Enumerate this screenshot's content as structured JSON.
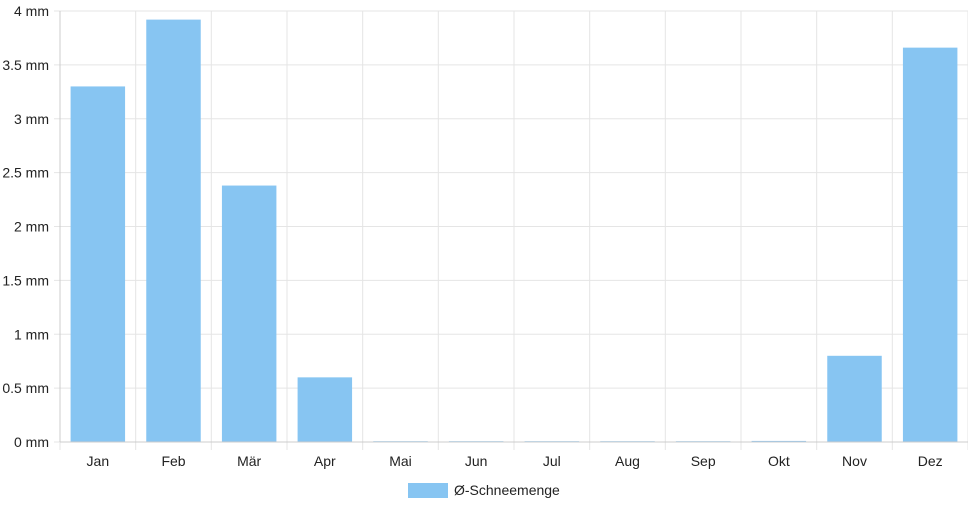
{
  "chart_data": {
    "type": "bar",
    "categories": [
      "Jan",
      "Feb",
      "Mär",
      "Apr",
      "Mai",
      "Jun",
      "Jul",
      "Aug",
      "Sep",
      "Okt",
      "Nov",
      "Dez"
    ],
    "series": [
      {
        "name": "Ø-Schneemenge",
        "values": [
          3.3,
          3.92,
          2.38,
          0.6,
          0,
          0,
          0,
          0,
          0,
          0.01,
          0.8,
          3.66
        ],
        "color": "#87c5f2"
      }
    ],
    "y_ticks": [
      "0 mm",
      "0.5 mm",
      "1 mm",
      "1.5 mm",
      "2 mm",
      "2.5 mm",
      "3 mm",
      "3.5 mm",
      "4 mm"
    ],
    "ylim": [
      0,
      4
    ],
    "ytick_step": 0.5,
    "grid": true,
    "legend_position": "bottom",
    "grid_color": "#e5e5e5",
    "axis_color": "#cccccc"
  }
}
